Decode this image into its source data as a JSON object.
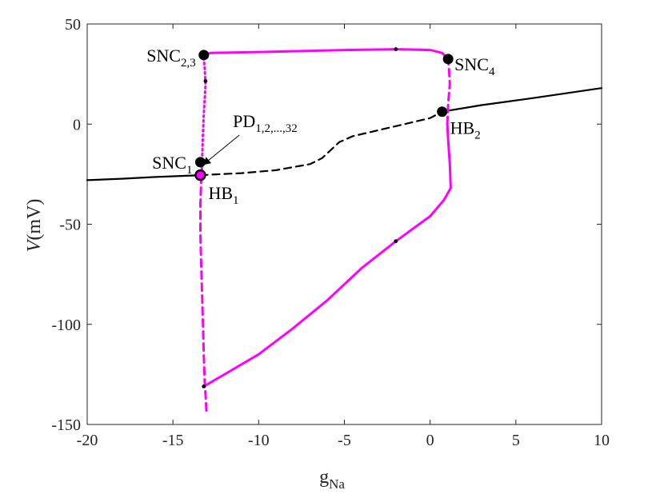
{
  "chart_data": {
    "type": "line",
    "title": "",
    "xlabel": {
      "main": "g",
      "sub": "Na"
    },
    "ylabel": {
      "main": "V",
      "rest": "(mV)"
    },
    "xlim": [
      -20,
      10
    ],
    "ylim": [
      -150,
      50
    ],
    "x_ticks": [
      -20,
      -15,
      -10,
      -5,
      0,
      5,
      10
    ],
    "y_ticks": [
      -150,
      -100,
      -50,
      0,
      50
    ],
    "colors": {
      "equilibrium": "#000000",
      "periodic": "#ff00ff",
      "axes": "#262626"
    },
    "series": [
      {
        "kind": "equilibrium-stable",
        "color": "#000000",
        "dash": "solid",
        "points": [
          [
            -20,
            -28
          ],
          [
            -18,
            -27.3
          ],
          [
            -16,
            -26.4
          ],
          [
            -14.2,
            -25.8
          ],
          [
            -13.4,
            -25.5
          ]
        ]
      },
      {
        "kind": "equilibrium-unstable",
        "color": "#000000",
        "dash": "dashed",
        "points": [
          [
            -13.4,
            -25.5
          ],
          [
            -11,
            -24.5
          ],
          [
            -9,
            -23
          ],
          [
            -7,
            -20
          ],
          [
            -6.3,
            -17
          ],
          [
            -5.8,
            -13
          ],
          [
            -5.3,
            -9
          ],
          [
            -4.5,
            -6
          ],
          [
            -3,
            -3
          ],
          [
            -1.5,
            0
          ],
          [
            0,
            3
          ],
          [
            0.7,
            6.2
          ]
        ]
      },
      {
        "kind": "equilibrium-stable",
        "color": "#000000",
        "dash": "solid",
        "points": [
          [
            0.7,
            6.2
          ],
          [
            3,
            9.5
          ],
          [
            6,
            13
          ],
          [
            10,
            18
          ]
        ]
      },
      {
        "kind": "periodic-max",
        "color": "#ff00ff",
        "dash": "solid",
        "points": [
          [
            -13.2,
            34.5
          ],
          [
            -12.8,
            35.5
          ],
          [
            -10,
            36
          ],
          [
            -5,
            37
          ],
          [
            -2,
            37.4
          ],
          [
            0,
            37
          ],
          [
            0.7,
            35.5
          ],
          [
            1.05,
            32.5
          ]
        ]
      },
      {
        "kind": "periodic-min",
        "color": "#ff00ff",
        "dash": "solid",
        "points": [
          [
            -13.2,
            -131
          ],
          [
            -12,
            -125
          ],
          [
            -10,
            -115
          ],
          [
            -8,
            -102
          ],
          [
            -6,
            -88
          ],
          [
            -4,
            -72
          ],
          [
            -2,
            -58.5
          ],
          [
            0,
            -46
          ],
          [
            0.8,
            -38
          ],
          [
            1.2,
            -32
          ],
          [
            1.15,
            -20
          ],
          [
            1.05,
            -8
          ],
          [
            1.0,
            0
          ]
        ]
      },
      {
        "kind": "periodic-unstable",
        "color": "#ff00ff",
        "dash": "dashed",
        "points": [
          [
            1.0,
            0
          ],
          [
            1.05,
            10
          ],
          [
            1.15,
            20
          ],
          [
            1.1,
            28
          ],
          [
            1.05,
            32.5
          ]
        ]
      },
      {
        "kind": "periodic-unstable",
        "color": "#ff00ff",
        "dash": "dashed",
        "points": [
          [
            -13.05,
            -143
          ],
          [
            -13.1,
            -135
          ],
          [
            -13.15,
            -128
          ],
          [
            -13.2,
            -115
          ],
          [
            -13.25,
            -100
          ],
          [
            -13.3,
            -85
          ],
          [
            -13.35,
            -70
          ],
          [
            -13.4,
            -55
          ],
          [
            -13.4,
            -40
          ],
          [
            -13.35,
            -28
          ],
          [
            -13.3,
            -20
          ]
        ]
      },
      {
        "kind": "periodic-unstable",
        "color": "#ff00ff",
        "dash": "dotted",
        "points": [
          [
            -13.3,
            -18
          ],
          [
            -13.25,
            -5
          ],
          [
            -13.2,
            5
          ],
          [
            -13.15,
            12
          ],
          [
            -13.1,
            20
          ],
          [
            -13.15,
            28
          ],
          [
            -13.2,
            33
          ]
        ]
      }
    ],
    "bifurcation_points": [
      {
        "label": "SNC",
        "sub": "2,3",
        "x": -13.2,
        "y": 34.5,
        "style": "big",
        "label_side": "left"
      },
      {
        "label": "SNC",
        "sub": "4",
        "x": 1.05,
        "y": 32.5,
        "style": "big",
        "label_side": "right"
      },
      {
        "label": "HB",
        "sub": "2",
        "x": 0.7,
        "y": 6.2,
        "style": "big",
        "label_side": "right-below"
      },
      {
        "label": "SNC",
        "sub": "1",
        "x": -13.4,
        "y": -19,
        "style": "big",
        "label_side": "left"
      },
      {
        "label": "HB",
        "sub": "1",
        "x": -13.4,
        "y": -25.5,
        "style": "ring",
        "label_side": "right-below"
      }
    ],
    "small_markers": [
      {
        "x": -2,
        "y": 37.4
      },
      {
        "x": -13.1,
        "y": 21.5
      },
      {
        "x": -2,
        "y": -58.5
      },
      {
        "x": -13.2,
        "y": -131
      }
    ],
    "annotation": {
      "label": "PD",
      "sub": "1,2,...,32",
      "arrow_to": [
        -13.2,
        -20
      ],
      "text_at": [
        -11.5,
        -1.5
      ]
    }
  }
}
